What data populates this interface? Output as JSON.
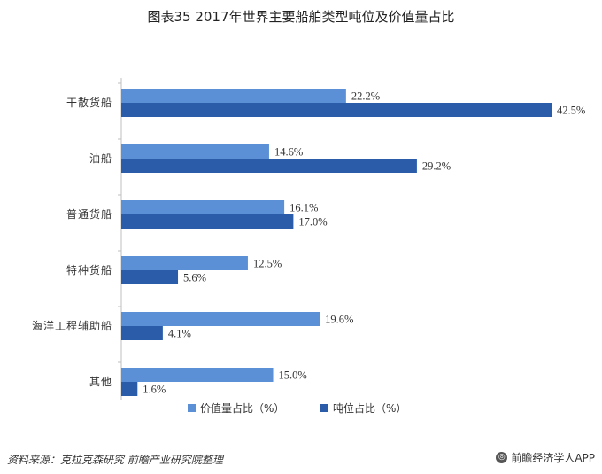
{
  "chart_data": {
    "type": "bar",
    "orientation": "horizontal",
    "title": "图表35 2017年世界主要船舶类型吨位及价值量占比",
    "categories": [
      "干散货船",
      "油船",
      "普通货船",
      "特种货船",
      "海洋工程辅助船",
      "其他"
    ],
    "series": [
      {
        "name": "价值量占比（%）",
        "color": "#5b8fd6",
        "values": [
          22.2,
          14.6,
          16.1,
          12.5,
          19.6,
          15.0
        ]
      },
      {
        "name": "吨位占比（%）",
        "color": "#2a5caa",
        "values": [
          42.5,
          29.2,
          17.0,
          5.6,
          4.1,
          1.6
        ]
      }
    ],
    "value_labels": [
      [
        "22.2%",
        "14.6%",
        "16.1%",
        "12.5%",
        "19.6%",
        "15.0%"
      ],
      [
        "42.5%",
        "29.2%",
        "17.0%",
        "5.6%",
        "4.1%",
        "1.6%"
      ]
    ],
    "xlim": [
      0,
      42.5
    ],
    "grid": false,
    "legend_position": "bottom"
  },
  "footer": {
    "source": "资料来源：克拉克森研究 前瞻产业研究院整理",
    "brand": "前瞻经济学人APP",
    "brand_icon": "qianzhan-logo-icon"
  }
}
